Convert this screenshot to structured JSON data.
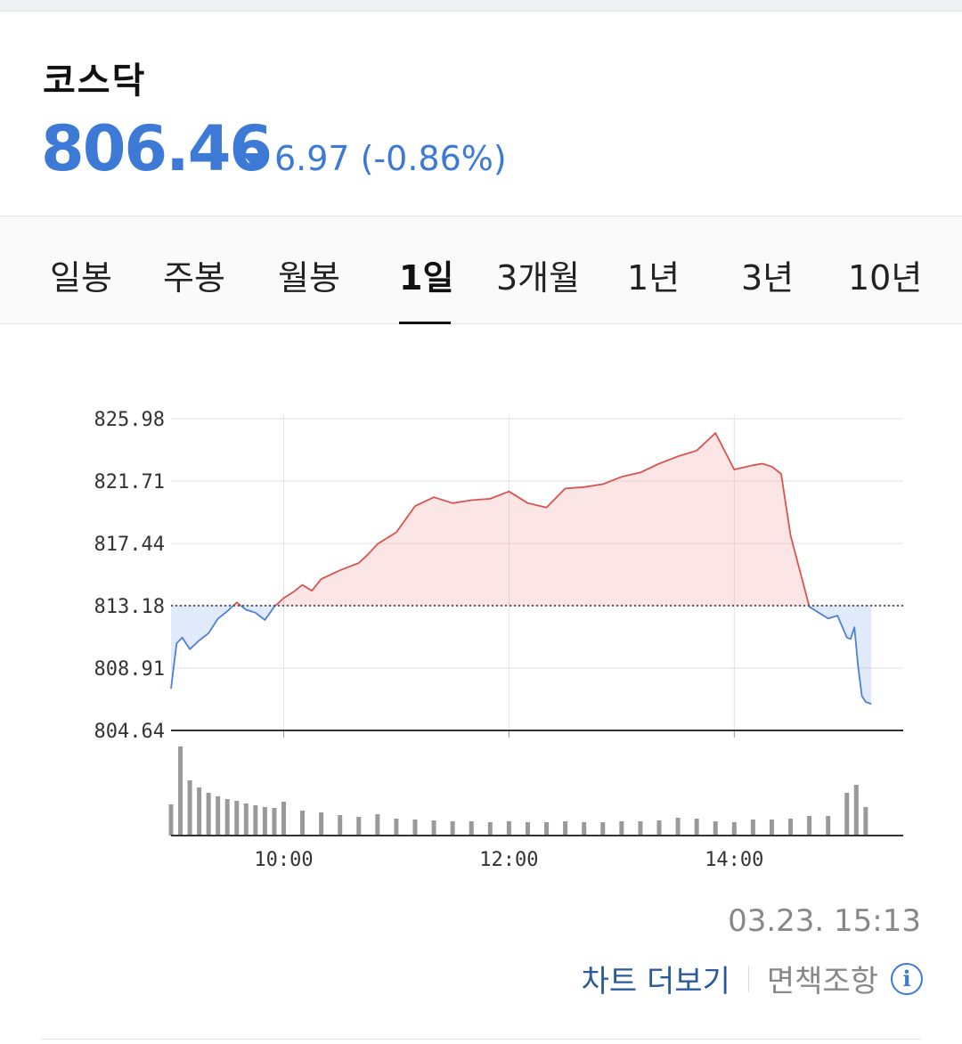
{
  "header": {
    "title": "코스닥",
    "price": "806.46",
    "change": "6.97",
    "change_pct": "(-0.86%)",
    "direction": "down",
    "color": "#3d7ad6"
  },
  "tabs": [
    {
      "label": "일봉",
      "active": false
    },
    {
      "label": "주봉",
      "active": false
    },
    {
      "label": "월봉",
      "active": false
    },
    {
      "label": "1일",
      "active": true
    },
    {
      "label": "3개월",
      "active": false
    },
    {
      "label": "1년",
      "active": false
    },
    {
      "label": "3년",
      "active": false
    },
    {
      "label": "10년",
      "active": false
    }
  ],
  "chart_data": {
    "type": "line",
    "reference_level": 813.18,
    "up_color": "#d9534f",
    "down_color": "#4f7fd6",
    "y_ticks": [
      "825.98",
      "821.71",
      "817.44",
      "813.18",
      "808.91",
      "804.64"
    ],
    "ylim": [
      804.64,
      825.98
    ],
    "x_ticks": [
      "10:00",
      "12:00",
      "14:00"
    ],
    "x_range": [
      "09:00",
      "15:30"
    ],
    "line_x": [
      "09:00",
      "09:03",
      "09:06",
      "09:10",
      "09:15",
      "09:20",
      "09:25",
      "09:30",
      "09:35",
      "09:40",
      "09:45",
      "09:50",
      "09:55",
      "10:00",
      "10:05",
      "10:10",
      "10:15",
      "10:20",
      "10:30",
      "10:40",
      "10:45",
      "10:50",
      "11:00",
      "11:10",
      "11:20",
      "11:30",
      "11:40",
      "11:50",
      "12:00",
      "12:10",
      "12:20",
      "12:30",
      "12:40",
      "12:50",
      "13:00",
      "13:10",
      "13:20",
      "13:30",
      "13:40",
      "13:50",
      "14:00",
      "14:10",
      "14:15",
      "14:20",
      "14:25",
      "14:30",
      "14:40",
      "14:50",
      "14:55",
      "15:00",
      "15:02",
      "15:04",
      "15:06",
      "15:08",
      "15:10",
      "15:12",
      "15:13"
    ],
    "line_y": [
      807.5,
      810.6,
      811.0,
      810.2,
      810.8,
      811.3,
      812.3,
      812.8,
      813.4,
      812.9,
      812.7,
      812.2,
      813.1,
      813.7,
      814.1,
      814.6,
      814.2,
      815.0,
      815.6,
      816.1,
      816.7,
      817.4,
      818.2,
      820.0,
      820.6,
      820.2,
      820.4,
      820.5,
      821.0,
      820.2,
      819.9,
      821.2,
      821.3,
      821.5,
      822.0,
      822.3,
      822.9,
      823.4,
      823.8,
      825.0,
      822.5,
      822.8,
      822.9,
      822.7,
      822.2,
      818.0,
      813.1,
      812.3,
      812.5,
      811.0,
      810.9,
      811.7,
      809.0,
      807.0,
      806.6,
      806.5,
      806.46
    ],
    "volume_x": [
      "09:00",
      "09:05",
      "09:10",
      "09:15",
      "09:20",
      "09:25",
      "09:30",
      "09:35",
      "09:40",
      "09:45",
      "09:50",
      "09:55",
      "10:00",
      "10:10",
      "10:20",
      "10:30",
      "10:40",
      "10:50",
      "11:00",
      "11:10",
      "11:20",
      "11:30",
      "11:40",
      "11:50",
      "12:00",
      "12:10",
      "12:20",
      "12:30",
      "12:40",
      "12:50",
      "13:00",
      "13:10",
      "13:20",
      "13:30",
      "13:40",
      "13:50",
      "14:00",
      "14:10",
      "14:20",
      "14:30",
      "14:40",
      "14:50",
      "15:00",
      "15:05",
      "15:10"
    ],
    "volume": [
      35,
      100,
      62,
      54,
      48,
      44,
      41,
      39,
      36,
      34,
      32,
      31,
      38,
      28,
      26,
      23,
      21,
      24,
      19,
      18,
      17,
      16,
      16,
      15,
      16,
      15,
      15,
      16,
      15,
      15,
      16,
      16,
      17,
      20,
      19,
      16,
      15,
      18,
      18,
      19,
      22,
      22,
      48,
      57,
      32
    ]
  },
  "timestamp": "03.23. 15:13",
  "footer": {
    "more_chart": "차트 더보기",
    "disclaimer": "면책조항",
    "info_glyph": "i"
  }
}
